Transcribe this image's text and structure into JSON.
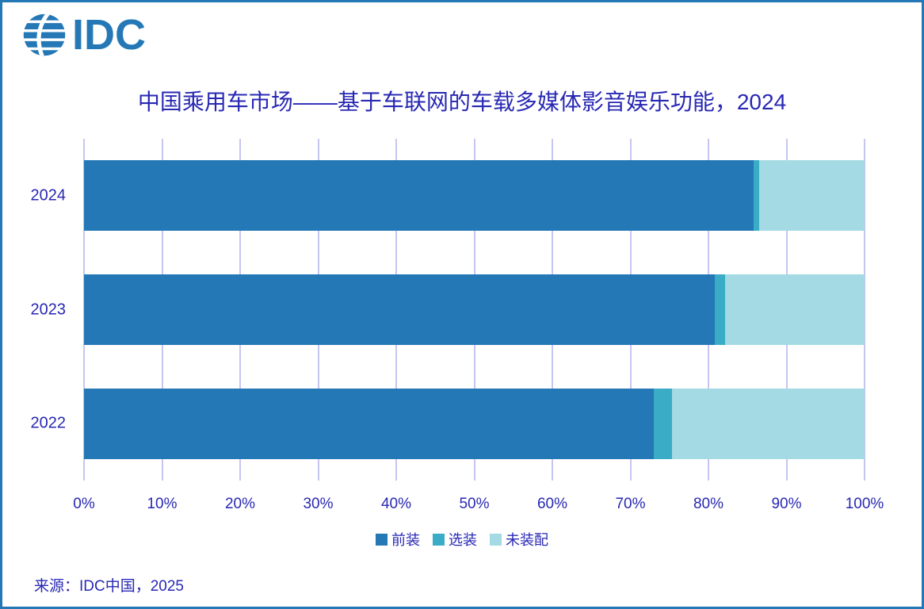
{
  "page": {
    "logo": {
      "text": "IDC"
    },
    "title": "中国乘用车市场——基于车联网的车载多媒体影音娱乐功能，2024",
    "source": "来源：IDC中国，2025"
  },
  "colors": {
    "brand": "#2478B5",
    "text_navy": "#2828B4",
    "gridline": "#C6C6F2",
    "page_border": "#2478B5"
  },
  "chart_data": {
    "type": "bar",
    "orientation": "horizontal",
    "stacked": true,
    "title": "中国乘用车市场——基于车联网的车载多媒体影音娱乐功能，2024",
    "categories": [
      "2024",
      "2023",
      "2022"
    ],
    "series": [
      {
        "name": "前装",
        "color": "#2478B5",
        "values": [
          85.8,
          80.8,
          73.0
        ]
      },
      {
        "name": "选装",
        "color": "#3AACC6",
        "values": [
          0.7,
          1.3,
          2.3
        ]
      },
      {
        "name": "未装配",
        "color": "#A4DAE4",
        "values": [
          13.5,
          17.9,
          24.7
        ]
      }
    ],
    "xlim": [
      0,
      100
    ],
    "x_tick_labels": [
      "0%",
      "10%",
      "20%",
      "30%",
      "40%",
      "50%",
      "60%",
      "70%",
      "80%",
      "90%",
      "100%"
    ],
    "grid": true,
    "legend_position": "bottom",
    "source_note": "来源：IDC中国，2025"
  }
}
